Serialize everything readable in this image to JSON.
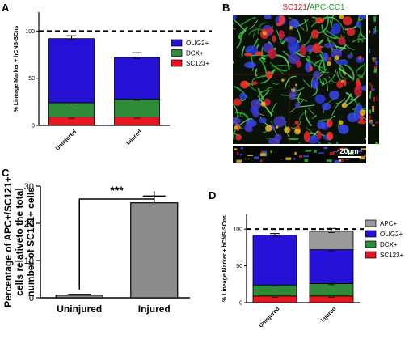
{
  "panels": {
    "A": {
      "letter": "A"
    },
    "B": {
      "letter": "B",
      "title_red": "SC121",
      "title_slash": "/",
      "title_green": "APC-CC1",
      "scale_label": "20µm"
    },
    "C": {
      "letter": "C"
    },
    "D": {
      "letter": "D"
    }
  },
  "colors": {
    "sc123": "#e8151e",
    "dcx": "#2e8b3a",
    "olig2": "#2510d8",
    "apc": "#9a9a9a",
    "barC": "#8c8c8c",
    "title_red": "#d21a1a",
    "title_green": "#1aa31a"
  },
  "chart_data": [
    {
      "id": "A",
      "type": "bar",
      "stacked": true,
      "ylabel": "% Lineage Marker + hCNS-SCns",
      "ylim": [
        0,
        120
      ],
      "yticks": [
        0,
        50,
        100
      ],
      "reference_line": 100,
      "categories": [
        "Uninjured",
        "Injured"
      ],
      "series": [
        {
          "name": "SC123+",
          "color": "#e8151e",
          "values": [
            9,
            9
          ]
        },
        {
          "name": "DCX+",
          "color": "#2e8b3a",
          "values": [
            15,
            19
          ]
        },
        {
          "name": "OLIG2+",
          "color": "#2510d8",
          "values": [
            68,
            44
          ]
        }
      ],
      "totals_error": [
        3,
        5
      ],
      "legend": "right"
    },
    {
      "id": "C",
      "type": "bar",
      "ylabel_lines": [
        "Percentage of APC+/SC121+",
        "cells relativeto the total",
        "number of SC121+ cells"
      ],
      "ylim": [
        0,
        30
      ],
      "yticks": [
        0,
        10,
        20,
        30
      ],
      "categories": [
        "Uninjured",
        "Injured"
      ],
      "values": [
        0.7,
        25.5
      ],
      "errors": [
        0.2,
        1.8
      ],
      "significance": "***"
    },
    {
      "id": "D",
      "type": "bar",
      "stacked": true,
      "ylabel": "% Lineage Marker + hCNS-SCns",
      "ylim": [
        0,
        120
      ],
      "yticks": [
        0,
        50,
        100
      ],
      "reference_line": 100,
      "categories": [
        "Uninjured",
        "Injured"
      ],
      "series": [
        {
          "name": "SC123+",
          "color": "#e8151e",
          "values": [
            9,
            9
          ]
        },
        {
          "name": "DCX+",
          "color": "#2e8b3a",
          "values": [
            15,
            17
          ]
        },
        {
          "name": "OLIG2+",
          "color": "#2510d8",
          "values": [
            68,
            46
          ]
        },
        {
          "name": "APC+",
          "color": "#9a9a9a",
          "values": [
            0,
            25
          ]
        }
      ],
      "totals_error": [
        2,
        4
      ],
      "legend": "right"
    }
  ]
}
